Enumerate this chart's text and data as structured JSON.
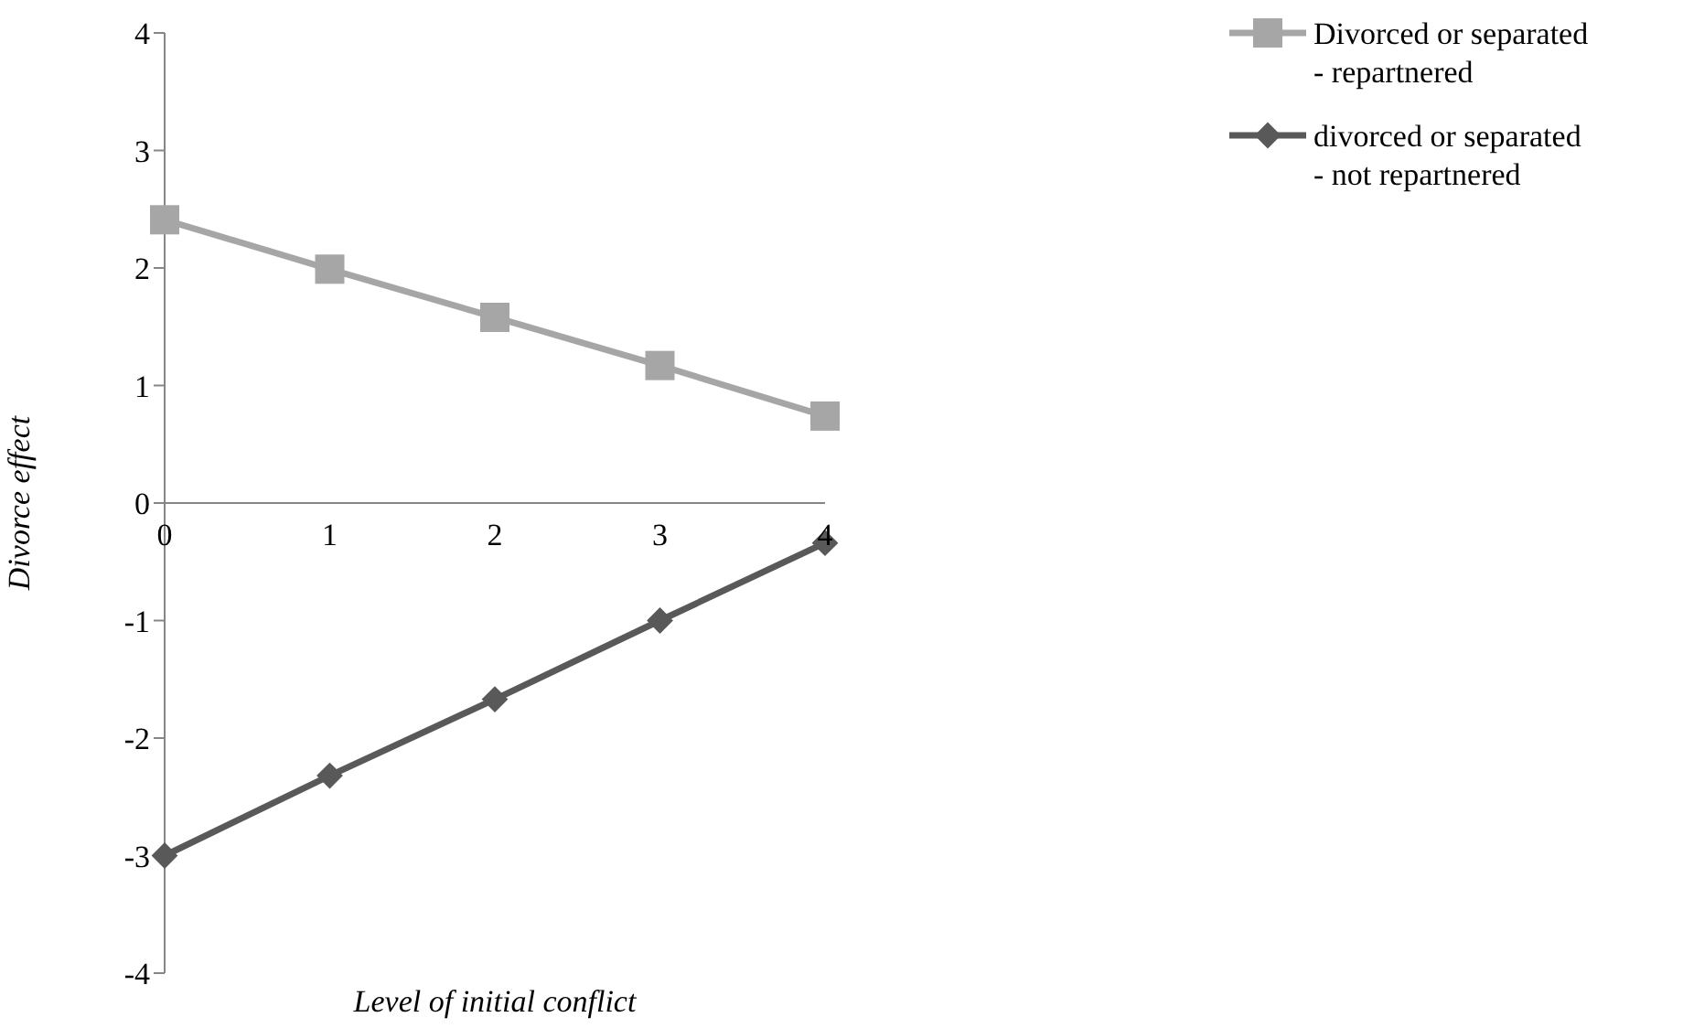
{
  "chart_data": {
    "type": "line",
    "xlabel": "Level of initial conflict",
    "ylabel": "Divorce effect",
    "categories": [
      "0",
      "1",
      "2",
      "3",
      "4"
    ],
    "series": [
      {
        "name": "Divorced or separated\n- repartnered",
        "color": "#a6a6a6",
        "marker": "square",
        "values": [
          2.41,
          1.99,
          1.58,
          1.17,
          0.74
        ]
      },
      {
        "name": "divorced or separated\n- not repartnered",
        "color": "#595959",
        "marker": "diamond",
        "values": [
          -3.0,
          -2.32,
          -1.67,
          -1.0,
          -0.34
        ]
      }
    ],
    "ylim": [
      -4,
      4
    ],
    "yticks": [
      -4,
      -3,
      -2,
      -1,
      0,
      1,
      2,
      3,
      4
    ],
    "grid": false,
    "legend": "top right",
    "line_style": "solid"
  }
}
